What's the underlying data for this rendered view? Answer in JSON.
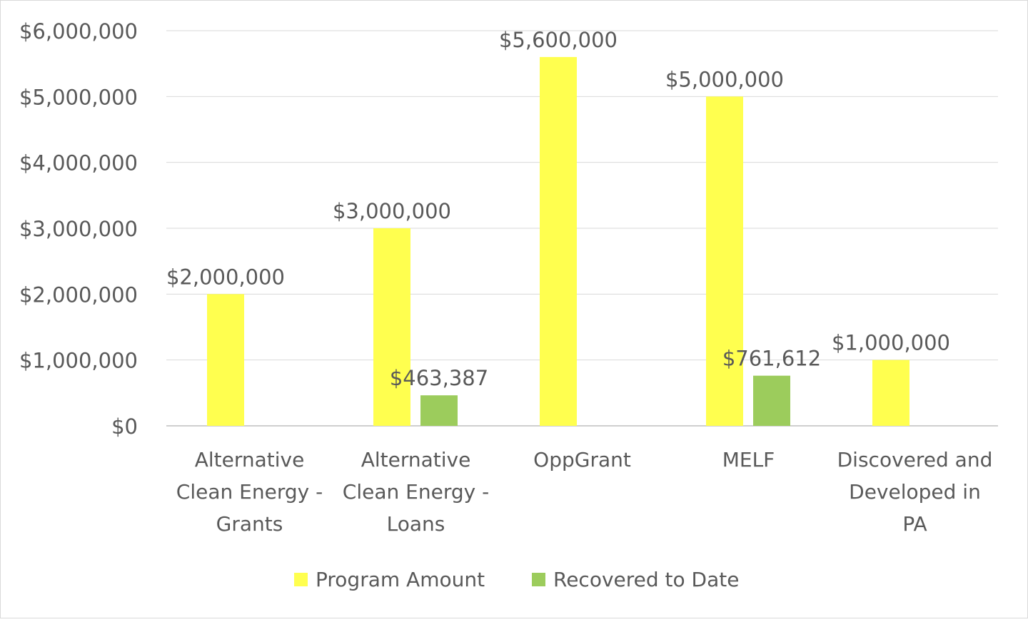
{
  "chart_data": {
    "type": "bar",
    "title": "",
    "xlabel": "",
    "ylabel": "",
    "categories": [
      [
        "Alternative",
        "Clean Energy -",
        "Grants"
      ],
      [
        "Alternative",
        "Clean Energy -",
        "Loans"
      ],
      [
        "OppGrant"
      ],
      [
        "MELF"
      ],
      [
        "Discovered and",
        "Developed in",
        "PA"
      ]
    ],
    "series": [
      {
        "name": "Program Amount",
        "color": "#FFFF4F",
        "values": [
          2000000,
          3000000,
          5600000,
          5000000,
          1000000
        ],
        "labels": [
          "$2,000,000",
          "$3,000,000",
          "$5,600,000",
          "$5,000,000",
          "$1,000,000"
        ]
      },
      {
        "name": "Recovered to Date",
        "color": "#9CCC5C",
        "values": [
          null,
          463387,
          null,
          761612,
          null
        ],
        "labels": [
          null,
          "$463,387",
          null,
          "$761,612",
          null
        ]
      }
    ],
    "ylim": [
      0,
      6000000
    ],
    "yticks": [
      0,
      1000000,
      2000000,
      3000000,
      4000000,
      5000000,
      6000000
    ],
    "ytick_labels": [
      "$0",
      "$1,000,000",
      "$2,000,000",
      "$3,000,000",
      "$4,000,000",
      "$5,000,000",
      "$6,000,000"
    ],
    "grid": true,
    "legend_position": "bottom"
  }
}
